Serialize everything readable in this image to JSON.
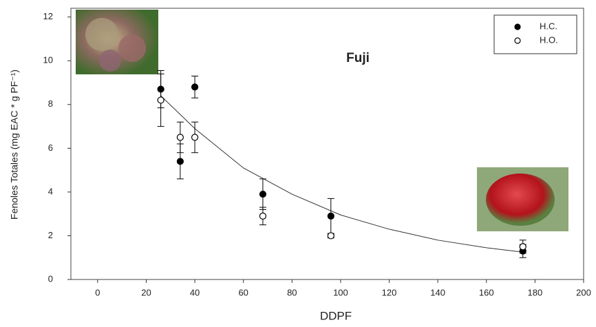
{
  "chart_data": {
    "type": "scatter",
    "title": "Fuji",
    "x_label": "DDPF",
    "y_label": "Fenoles Totales (mg EAC * g PF⁻¹)",
    "xlim": [
      -11,
      200
    ],
    "ylim": [
      0,
      12.4
    ],
    "xticks": [
      0,
      20,
      40,
      60,
      80,
      100,
      120,
      140,
      160,
      180,
      200
    ],
    "yticks": [
      0,
      2,
      4,
      6,
      8,
      10,
      12
    ],
    "legend": "upper right",
    "series": [
      {
        "name": "H.C.",
        "color": "#000000",
        "marker": "filled",
        "x": [
          26,
          34,
          40,
          68,
          96,
          175
        ],
        "values": [
          8.7,
          5.4,
          8.8,
          3.9,
          2.9,
          1.3
        ],
        "errors": [
          0.85,
          0.8,
          0.5,
          0.7,
          0.8,
          0.3
        ]
      },
      {
        "name": "H.O.",
        "color": "#000000",
        "marker": "open",
        "x": [
          26,
          34,
          40,
          68,
          96,
          175
        ],
        "values": [
          8.2,
          6.5,
          6.5,
          2.9,
          2.0,
          1.5
        ],
        "errors": [
          1.2,
          0.7,
          0.7,
          0.4,
          0.1,
          0.3
        ]
      }
    ],
    "fit": {
      "x": [
        26,
        40,
        60,
        80,
        100,
        120,
        140,
        160,
        175
      ],
      "values": [
        8.4,
        6.9,
        5.1,
        3.9,
        2.95,
        2.3,
        1.8,
        1.45,
        1.25
      ]
    }
  }
}
